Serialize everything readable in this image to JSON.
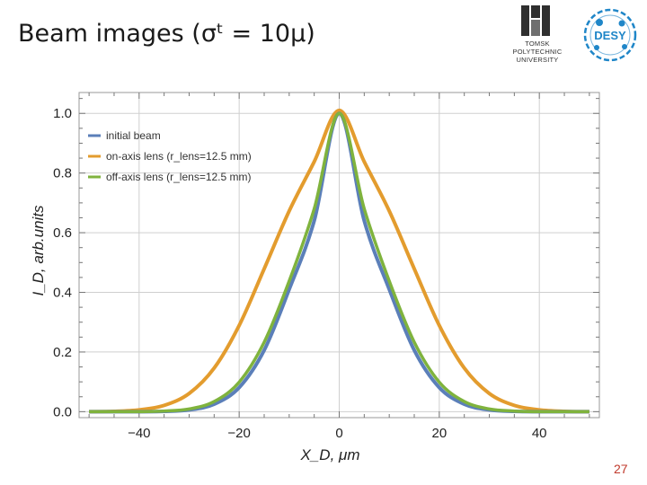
{
  "slide": {
    "title": "Beam images (σᵗ = 10μ)",
    "page_number": "27"
  },
  "logos": {
    "tpu": {
      "lines": [
        "TOMSK",
        "POLYTECHNIC",
        "UNIVERSITY"
      ],
      "color": "#2f2f2f"
    },
    "desy": {
      "text": "DESY",
      "color": "#1f86c8"
    }
  },
  "chart_data": {
    "type": "line",
    "title": "",
    "xlabel": "X_D, μm",
    "ylabel": "I_D, arb.units",
    "xlim": [
      -52,
      52
    ],
    "ylim": [
      -0.02,
      1.07
    ],
    "x_ticks": [
      -40,
      -20,
      0,
      20,
      40
    ],
    "x_tick_labels": [
      "−40",
      "−20",
      "0",
      "20",
      "40"
    ],
    "y_ticks": [
      0.0,
      0.2,
      0.4,
      0.6,
      0.8,
      1.0
    ],
    "y_tick_labels": [
      "0.0",
      "0.2",
      "0.4",
      "0.6",
      "0.8",
      "1.0"
    ],
    "grid": true,
    "legend_position": "top-left",
    "x": [
      -50,
      -45,
      -40,
      -35,
      -30,
      -25,
      -20,
      -15,
      -10,
      -5,
      0,
      5,
      10,
      15,
      20,
      25,
      30,
      35,
      40,
      45,
      50
    ],
    "series": [
      {
        "name": "initial beam",
        "color": "#5b7fb9",
        "values": [
          0.0,
          0.0,
          0.0,
          0.001,
          0.006,
          0.025,
          0.081,
          0.206,
          0.41,
          0.64,
          1.0,
          0.64,
          0.41,
          0.206,
          0.081,
          0.025,
          0.006,
          0.001,
          0.0,
          0.0,
          0.0
        ]
      },
      {
        "name": "on-axis lens (r_lens=12.5 mm)",
        "color": "#e39c2e",
        "values": [
          0.0,
          0.001,
          0.006,
          0.021,
          0.061,
          0.146,
          0.289,
          0.479,
          0.673,
          0.838,
          1.01,
          0.838,
          0.673,
          0.479,
          0.289,
          0.146,
          0.061,
          0.021,
          0.006,
          0.001,
          0.0
        ]
      },
      {
        "name": "off-axis lens (r_lens=12.5 mm)",
        "color": "#7fb33d",
        "values": [
          0.0,
          0.0,
          0.0,
          0.002,
          0.009,
          0.034,
          0.099,
          0.233,
          0.438,
          0.68,
          1.0,
          0.68,
          0.438,
          0.233,
          0.099,
          0.034,
          0.009,
          0.002,
          0.0,
          0.0,
          0.0
        ]
      }
    ]
  }
}
